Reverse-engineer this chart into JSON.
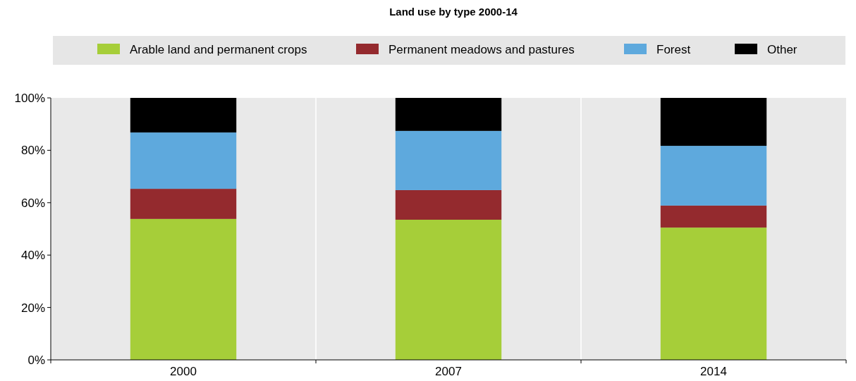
{
  "chart_data": {
    "type": "bar",
    "title": "Land use by type 2000-14",
    "categories": [
      "2000",
      "2007",
      "2014"
    ],
    "stacked": true,
    "series": [
      {
        "name": "Arable land and permanent crops",
        "color": "#a6ce39",
        "values": [
          53.8,
          53.5,
          50.5
        ]
      },
      {
        "name": "Permanent meadows and pastures",
        "color": "#942a2e",
        "values": [
          11.5,
          11.3,
          8.4
        ]
      },
      {
        "name": "Forest",
        "color": "#5ea9dd",
        "values": [
          21.5,
          22.6,
          22.8
        ]
      },
      {
        "name": "Other",
        "color": "#000000",
        "values": [
          13.2,
          12.6,
          18.3
        ]
      }
    ],
    "ylim": [
      0,
      100
    ],
    "yticks": [
      {
        "value": 0,
        "label": "0%"
      },
      {
        "value": 20,
        "label": "20%"
      },
      {
        "value": 40,
        "label": "40%"
      },
      {
        "value": 60,
        "label": "60%"
      },
      {
        "value": 80,
        "label": "80%"
      },
      {
        "value": 100,
        "label": "100%"
      }
    ],
    "grid": false,
    "legend": "top"
  }
}
